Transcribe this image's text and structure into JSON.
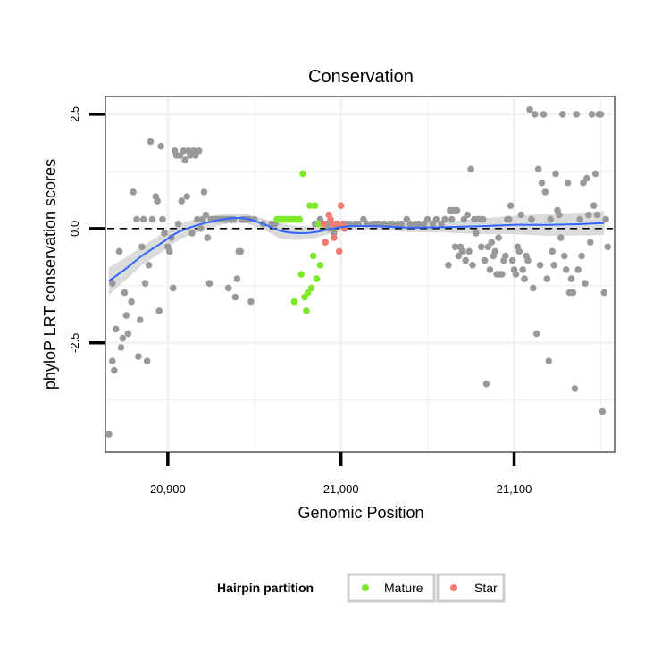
{
  "chart_data": {
    "type": "scatter",
    "title": "Conservation",
    "xlabel": "Genomic Position",
    "ylabel": "phyloP LRT conservation scores",
    "xlim": [
      20865,
      21157
    ],
    "ylim": [
      -4.85,
      2.85
    ],
    "xticks": [
      20900,
      21000,
      21100
    ],
    "xtick_labels": [
      "20,900",
      "21,000",
      "21,100"
    ],
    "yticks": [
      -2.5,
      0.0,
      2.5
    ],
    "ytick_labels": [
      "-2.5",
      "0.0",
      "2.5"
    ],
    "grid": true,
    "reference_line": {
      "y": 0,
      "style": "dashed"
    },
    "legend": {
      "title": "Hairpin partition",
      "position": "bottom",
      "entries": [
        "Mature",
        "Star"
      ]
    },
    "colors": {
      "other": "#999999",
      "Mature": "#7ee82b",
      "Star": "#ef7d72",
      "smooth": "#3366ff",
      "band": "#d5d5d5"
    },
    "series": [
      {
        "points": [
          [
            20866,
            -4.5
          ],
          [
            20868,
            -2.9
          ],
          [
            20869,
            -3.1
          ],
          [
            20868,
            -1.2
          ],
          [
            20870,
            -2.2
          ],
          [
            20872,
            -0.5
          ],
          [
            20873,
            -2.6
          ],
          [
            20874,
            -2.4
          ],
          [
            20875,
            -1.4
          ],
          [
            20876,
            -1.9
          ],
          [
            20877,
            -2.3
          ],
          [
            20879,
            -1.6
          ],
          [
            20880,
            0.8
          ],
          [
            20882,
            0.2
          ],
          [
            20883,
            -2.8
          ],
          [
            20884,
            -2.0
          ],
          [
            20885,
            -0.4
          ],
          [
            20886,
            0.2
          ],
          [
            20887,
            -1.2
          ],
          [
            20888,
            -2.9
          ],
          [
            20889,
            -0.8
          ],
          [
            20890,
            1.9
          ],
          [
            20891,
            0.2
          ],
          [
            20893,
            0.7
          ],
          [
            20894,
            0.6
          ],
          [
            20895,
            -1.8
          ],
          [
            20896,
            1.8
          ],
          [
            20897,
            0.2
          ],
          [
            20898,
            -0.1
          ],
          [
            20900,
            -0.4
          ],
          [
            20901,
            -0.5
          ],
          [
            20902,
            -0.2
          ],
          [
            20903,
            -1.3
          ],
          [
            20904,
            1.7
          ],
          [
            20905,
            1.6
          ],
          [
            20906,
            0.1
          ],
          [
            20907,
            1.6
          ],
          [
            20908,
            0.6
          ],
          [
            20909,
            1.7
          ],
          [
            20910,
            1.5
          ],
          [
            20911,
            0.7
          ],
          [
            20912,
            1.7
          ],
          [
            20913,
            1.6
          ],
          [
            20914,
            -0.1
          ],
          [
            20915,
            1.7
          ],
          [
            20916,
            1.6
          ],
          [
            20917,
            0.2
          ],
          [
            20918,
            1.7
          ],
          [
            20919,
            0.0
          ],
          [
            20920,
            0.2
          ],
          [
            20921,
            0.8
          ],
          [
            20922,
            0.3
          ],
          [
            20923,
            -0.2
          ],
          [
            20924,
            -1.2
          ],
          [
            20925,
            0.2
          ],
          [
            20926,
            0.2
          ],
          [
            20927,
            0.2
          ],
          [
            20928,
            0.2
          ],
          [
            20929,
            0.2
          ],
          [
            20930,
            0.2
          ],
          [
            20931,
            0.2
          ],
          [
            20932,
            0.2
          ],
          [
            20933,
            0.2
          ],
          [
            20934,
            0.2
          ],
          [
            20935,
            -1.3
          ],
          [
            20936,
            0.2
          ],
          [
            20937,
            0.2
          ],
          [
            20938,
            0.2
          ],
          [
            20939,
            -1.5
          ],
          [
            20940,
            -1.1
          ],
          [
            20941,
            -0.5
          ],
          [
            20942,
            -0.5
          ],
          [
            20943,
            0.2
          ],
          [
            20944,
            0.2
          ],
          [
            20945,
            0.2
          ],
          [
            20946,
            0.2
          ],
          [
            20947,
            0.2
          ],
          [
            20948,
            -1.6
          ],
          [
            20950,
            0.2
          ],
          [
            20955,
            0.1
          ],
          [
            20960,
            0.1
          ],
          [
            20962,
            0.1
          ],
          [
            20985,
            0.1
          ],
          [
            20988,
            0.2
          ],
          [
            20990,
            0.1
          ],
          [
            20992,
            0.1
          ],
          [
            20993,
            0.0
          ],
          [
            20996,
            -0.1
          ],
          [
            20998,
            0.1
          ],
          [
            21003,
            0.1
          ],
          [
            21005,
            0.1
          ],
          [
            21008,
            0.1
          ],
          [
            21010,
            0.1
          ],
          [
            21013,
            0.2
          ],
          [
            21015,
            0.1
          ],
          [
            21018,
            0.1
          ],
          [
            21020,
            0.1
          ],
          [
            21022,
            0.1
          ],
          [
            21025,
            0.1
          ],
          [
            21028,
            0.1
          ],
          [
            21030,
            0.1
          ],
          [
            21033,
            0.1
          ],
          [
            21035,
            0.1
          ],
          [
            21038,
            0.2
          ],
          [
            21040,
            0.1
          ],
          [
            21043,
            0.1
          ],
          [
            21045,
            0.1
          ],
          [
            21048,
            0.1
          ],
          [
            21050,
            0.2
          ],
          [
            21053,
            0.1
          ],
          [
            21055,
            0.2
          ],
          [
            21058,
            0.1
          ],
          [
            21060,
            0.2
          ],
          [
            21062,
            -0.8
          ],
          [
            21063,
            0.4
          ],
          [
            21064,
            0.2
          ],
          [
            21065,
            0.4
          ],
          [
            21066,
            -0.4
          ],
          [
            21067,
            0.4
          ],
          [
            21068,
            -0.6
          ],
          [
            21069,
            -0.4
          ],
          [
            21070,
            -0.5
          ],
          [
            21071,
            0.2
          ],
          [
            21072,
            -0.7
          ],
          [
            21073,
            0.3
          ],
          [
            21074,
            -0.5
          ],
          [
            21075,
            1.3
          ],
          [
            21076,
            -0.8
          ],
          [
            21077,
            0.2
          ],
          [
            21078,
            -0.1
          ],
          [
            21079,
            0.2
          ],
          [
            21080,
            0.2
          ],
          [
            21081,
            -0.4
          ],
          [
            21082,
            0.2
          ],
          [
            21083,
            -0.7
          ],
          [
            21084,
            -3.4
          ],
          [
            21085,
            -0.4
          ],
          [
            21086,
            -0.9
          ],
          [
            21087,
            -0.3
          ],
          [
            21088,
            -0.6
          ],
          [
            21089,
            -0.5
          ],
          [
            21090,
            -1.0
          ],
          [
            21091,
            -0.2
          ],
          [
            21092,
            -1.0
          ],
          [
            21093,
            -1.0
          ],
          [
            21094,
            -0.7
          ],
          [
            21095,
            -0.6
          ],
          [
            21096,
            0.2
          ],
          [
            21097,
            0.2
          ],
          [
            21098,
            0.5
          ],
          [
            21099,
            -0.7
          ],
          [
            21100,
            -0.9
          ],
          [
            21101,
            -1.0
          ],
          [
            21102,
            -0.4
          ],
          [
            21103,
            -0.5
          ],
          [
            21104,
            0.3
          ],
          [
            21105,
            -0.9
          ],
          [
            21106,
            -1.1
          ],
          [
            21107,
            -0.6
          ],
          [
            21108,
            -0.7
          ],
          [
            21109,
            2.6
          ],
          [
            21110,
            0.2
          ],
          [
            21111,
            -1.3
          ],
          [
            21112,
            2.5
          ],
          [
            21113,
            -2.3
          ],
          [
            21114,
            1.3
          ],
          [
            21115,
            -0.8
          ],
          [
            21116,
            1.0
          ],
          [
            21117,
            2.5
          ],
          [
            21118,
            0.8
          ],
          [
            21119,
            -1.1
          ],
          [
            21120,
            -2.9
          ],
          [
            21121,
            0.2
          ],
          [
            21122,
            -0.5
          ],
          [
            21123,
            -0.8
          ],
          [
            21124,
            1.2
          ],
          [
            21125,
            0.4
          ],
          [
            21126,
            0.3
          ],
          [
            21127,
            -0.2
          ],
          [
            21128,
            2.5
          ],
          [
            21129,
            -0.6
          ],
          [
            21130,
            -0.9
          ],
          [
            21131,
            1.0
          ],
          [
            21132,
            -1.4
          ],
          [
            21133,
            -1.1
          ],
          [
            21134,
            -1.4
          ],
          [
            21135,
            -3.5
          ],
          [
            21136,
            2.5
          ],
          [
            21137,
            -0.9
          ],
          [
            21138,
            0.2
          ],
          [
            21139,
            -0.6
          ],
          [
            21140,
            1.0
          ],
          [
            21141,
            -1.2
          ],
          [
            21142,
            1.1
          ],
          [
            21143,
            0.3
          ],
          [
            21144,
            -0.3
          ],
          [
            21145,
            2.5
          ],
          [
            21146,
            0.5
          ],
          [
            21147,
            1.2
          ],
          [
            21148,
            0.3
          ],
          [
            21149,
            2.5
          ],
          [
            21150,
            2.5
          ],
          [
            21151,
            -4.0
          ],
          [
            21152,
            -1.4
          ],
          [
            21153,
            0.2
          ],
          [
            21154,
            -0.4
          ]
        ]
      },
      {
        "name": "Mature",
        "points": [
          [
            20963,
            0.2
          ],
          [
            20964,
            0.2
          ],
          [
            20965,
            0.2
          ],
          [
            20966,
            0.2
          ],
          [
            20967,
            0.2
          ],
          [
            20968,
            0.2
          ],
          [
            20969,
            0.2
          ],
          [
            20970,
            0.2
          ],
          [
            20971,
            0.2
          ],
          [
            20972,
            0.2
          ],
          [
            20973,
            -1.6
          ],
          [
            20974,
            0.2
          ],
          [
            20975,
            0.2
          ],
          [
            20976,
            0.2
          ],
          [
            20977,
            -1.0
          ],
          [
            20978,
            1.2
          ],
          [
            20979,
            -1.5
          ],
          [
            20980,
            -1.8
          ],
          [
            20981,
            -1.4
          ],
          [
            20982,
            0.5
          ],
          [
            20983,
            -1.3
          ],
          [
            20984,
            -0.6
          ],
          [
            20985,
            0.5
          ],
          [
            20986,
            -1.1
          ],
          [
            20987,
            0.1
          ],
          [
            20988,
            -0.8
          ]
        ]
      },
      {
        "name": "Star",
        "points": [
          [
            20990,
            0.1
          ],
          [
            20991,
            -0.3
          ],
          [
            20993,
            0.3
          ],
          [
            20994,
            0.2
          ],
          [
            20995,
            0.1
          ],
          [
            20996,
            -0.2
          ],
          [
            20997,
            0.1
          ],
          [
            20998,
            0.1
          ],
          [
            20999,
            -0.5
          ],
          [
            21000,
            0.5
          ],
          [
            21001,
            0.1
          ],
          [
            21002,
            0.0
          ]
        ]
      }
    ],
    "smooth": {
      "x": [
        20866,
        20875,
        20885,
        20895,
        20905,
        20915,
        20925,
        20935,
        20945,
        20955,
        20965,
        20975,
        20985,
        20995,
        21005,
        21020,
        21040,
        21060,
        21080,
        21100,
        21120,
        21140,
        21152
      ],
      "y": [
        -1.15,
        -0.9,
        -0.6,
        -0.35,
        -0.1,
        0.05,
        0.15,
        0.22,
        0.22,
        0.1,
        -0.05,
        -0.1,
        -0.08,
        0.0,
        0.05,
        0.05,
        0.02,
        0.03,
        0.05,
        0.08,
        0.08,
        0.1,
        0.12
      ],
      "upper": [
        -0.85,
        -0.65,
        -0.4,
        -0.15,
        0.08,
        0.2,
        0.28,
        0.33,
        0.32,
        0.22,
        0.12,
        0.05,
        0.05,
        0.1,
        0.12,
        0.12,
        0.12,
        0.15,
        0.22,
        0.28,
        0.32,
        0.35,
        0.38
      ],
      "lower": [
        -1.45,
        -1.15,
        -0.8,
        -0.55,
        -0.28,
        -0.1,
        0.02,
        0.11,
        0.12,
        -0.02,
        -0.22,
        -0.25,
        -0.21,
        -0.1,
        -0.02,
        -0.02,
        -0.08,
        -0.09,
        -0.12,
        -0.12,
        -0.16,
        -0.15,
        -0.14
      ]
    }
  }
}
